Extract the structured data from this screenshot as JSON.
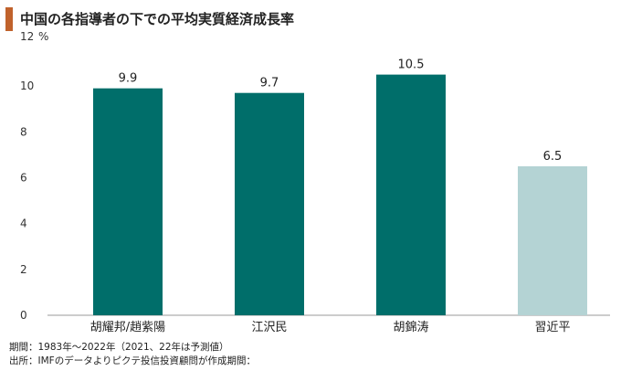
{
  "title": "中国の各指導者の下での平均実質経済成長率",
  "accent_color": "#c0622c",
  "chart_data": {
    "type": "bar",
    "categories": [
      "胡耀邦/趙紫陽",
      "江沢民",
      "胡錦涛",
      "習近平"
    ],
    "values": [
      9.9,
      9.7,
      10.5,
      6.5
    ],
    "value_labels": [
      "9.9",
      "9.7",
      "10.5",
      "6.5"
    ],
    "colors": [
      "#006e6a",
      "#006e6a",
      "#006e6a",
      "#b4d3d4"
    ],
    "ylim": [
      0,
      12
    ],
    "yticks": [
      0,
      2,
      4,
      6,
      8,
      10,
      12
    ],
    "yunit": "%",
    "grid": false
  },
  "notes": [
    "期間：1983年～2022年（2021、22年は予測値）",
    "出所：IMFのデータよりピクテ投信投資顧問が作成期間："
  ]
}
